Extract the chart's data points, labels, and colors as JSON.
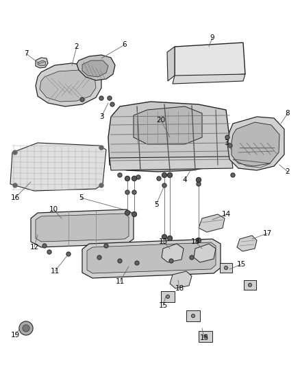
{
  "background_color": "#ffffff",
  "fig_width": 4.38,
  "fig_height": 5.33,
  "dpi": 100,
  "line_color": "#333333",
  "text_color": "#000000",
  "font_size": 7.5,
  "part_fill": "#e8e8e8",
  "part_fill_dark": "#c8c8c8",
  "part_edge": "#222222",
  "label_line_color": "#666666"
}
